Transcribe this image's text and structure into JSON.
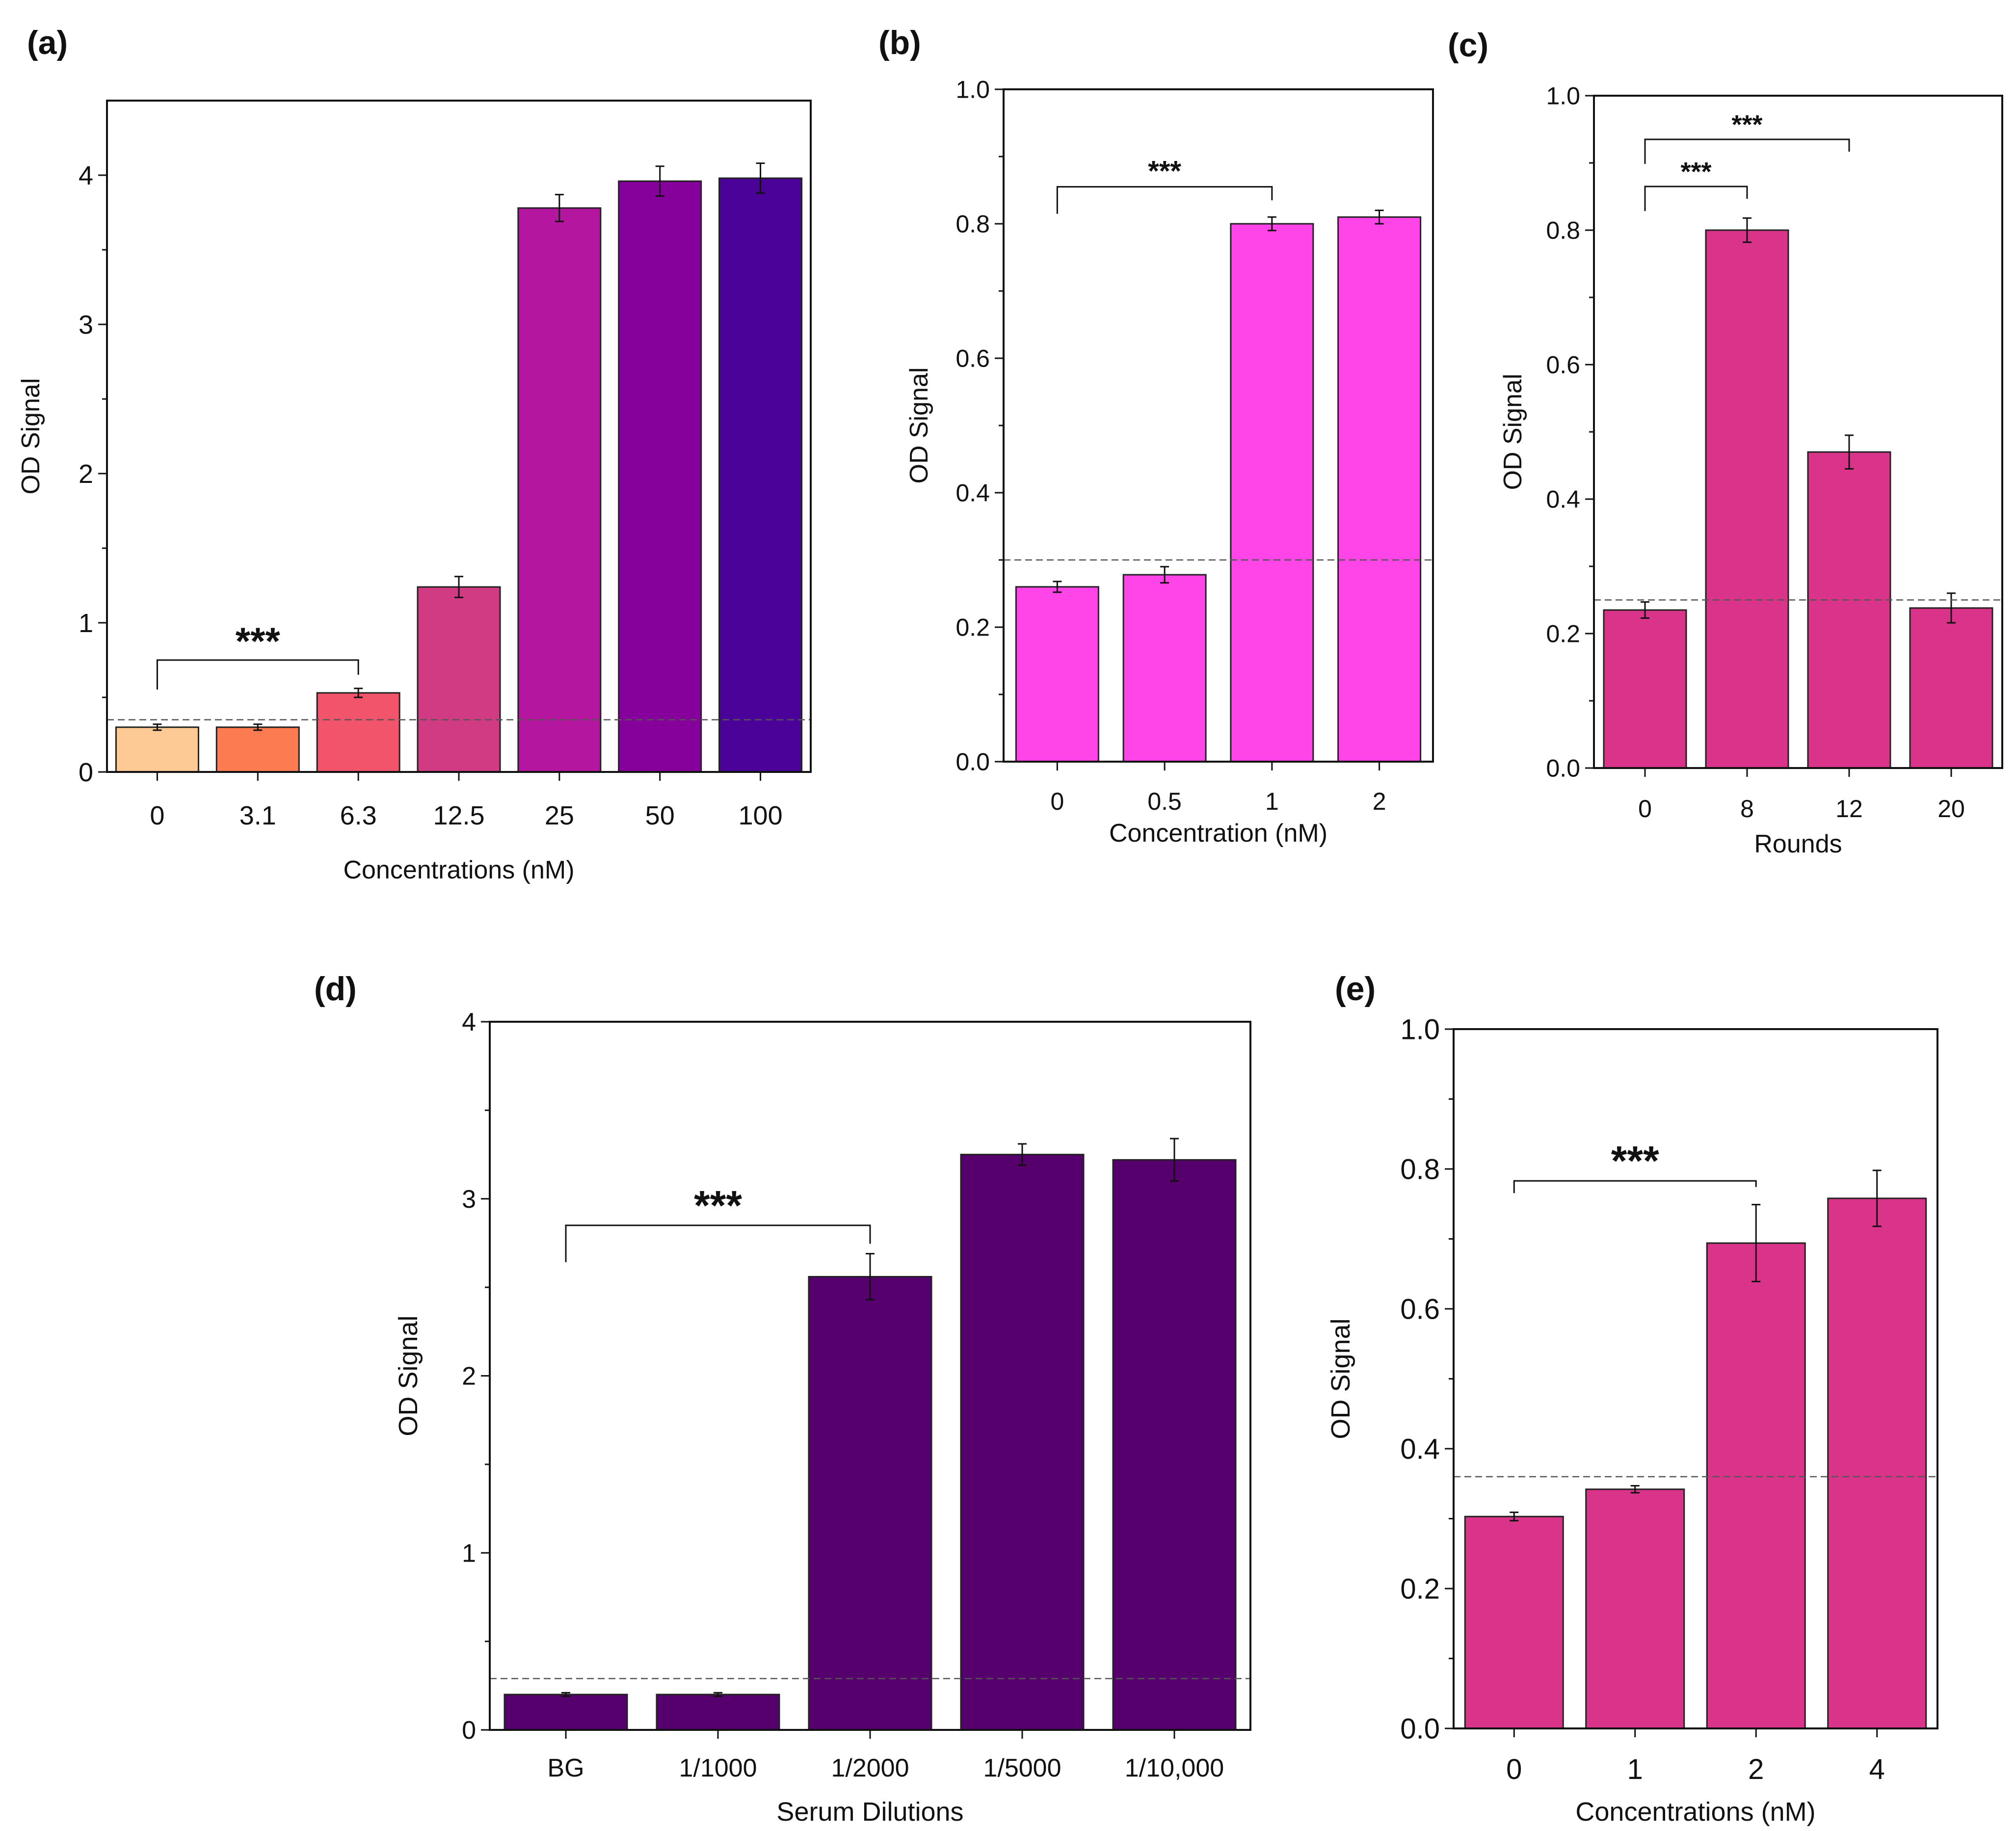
{
  "chart_data": [
    {
      "type": "bar",
      "panel_label": "(a)",
      "title": "",
      "xlabel": "Concentrations (nM)",
      "ylabel": "OD Signal",
      "ylim": [
        0,
        4.5
      ],
      "yticks": [
        "0",
        "1",
        "2",
        "3",
        "4"
      ],
      "categories": [
        "0",
        "3.1",
        "6.3",
        "12.5",
        "25",
        "50",
        "100"
      ],
      "values": [
        0.3,
        0.3,
        0.53,
        1.24,
        3.78,
        3.96,
        3.98
      ],
      "errors": [
        0.02,
        0.02,
        0.03,
        0.07,
        0.09,
        0.1,
        0.1
      ],
      "bar_colors": [
        "#FDC994",
        "#FC7B50",
        "#F1546B",
        "#D13B83",
        "#B4169F",
        "#86009C",
        "#4A0298"
      ],
      "tick_colors": [
        "#111111",
        "#111111",
        "#111111",
        "#111111",
        "#111111",
        "#111111",
        "#111111"
      ],
      "cutoff": 0.35,
      "significance": {
        "from": 0,
        "to": 2,
        "level": 0.75,
        "label": "***"
      }
    },
    {
      "type": "bar",
      "panel_label": "(b)",
      "title": "",
      "xlabel": "Concentration (nM)",
      "ylabel": "OD Signal",
      "ylim": [
        0,
        1.0
      ],
      "yticks": [
        "0.0",
        "0.2",
        "0.4",
        "0.6",
        "0.8",
        "1.0"
      ],
      "categories": [
        "0",
        "0.5",
        "1",
        "2"
      ],
      "values": [
        0.26,
        0.278,
        0.8,
        0.81
      ],
      "errors": [
        0.008,
        0.012,
        0.01,
        0.01
      ],
      "bar_colors": [
        "#FF44E8",
        "#FF44E8",
        "#FF44E8",
        "#FF44E8"
      ],
      "tick_colors": [
        "#111111",
        "#111111",
        "#111111",
        "#111111"
      ],
      "cutoff": 0.3,
      "significance": {
        "from": 0,
        "to": 2,
        "level": 0.855,
        "label": "***"
      }
    },
    {
      "type": "bar",
      "panel_label": "(c)",
      "title": "",
      "xlabel": "Rounds",
      "ylabel": "OD Signal",
      "ylim": [
        0,
        1.0
      ],
      "yticks": [
        "0.0",
        "0.2",
        "0.4",
        "0.6",
        "0.8",
        "1.0"
      ],
      "categories": [
        "0",
        "8",
        "12",
        "20"
      ],
      "values": [
        0.235,
        0.8,
        0.47,
        0.238
      ],
      "errors": [
        0.012,
        0.018,
        0.025,
        0.022
      ],
      "bar_colors": [
        "#D9348A",
        "#D9348A",
        "#D9348A",
        "#D9348A"
      ],
      "tick_colors": [
        "#111111",
        "#111111",
        "#111111",
        "#111111"
      ],
      "cutoff": 0.25,
      "significance": [
        {
          "from": 0,
          "to": 1,
          "level": 0.865,
          "label": "***"
        },
        {
          "from": 0,
          "to": 2,
          "level": 0.935,
          "label": "***"
        }
      ]
    },
    {
      "type": "bar",
      "panel_label": "(d)",
      "title": "",
      "xlabel": "Serum Dilutions",
      "ylabel": "OD Signal",
      "ylim": [
        0,
        4
      ],
      "yticks": [
        "0",
        "1",
        "2",
        "3",
        "4"
      ],
      "categories": [
        "BG",
        "1/1000",
        "1/2000",
        "1/5000",
        "1/10,000"
      ],
      "values": [
        0.2,
        0.2,
        2.56,
        3.25,
        3.22
      ],
      "errors": [
        0.01,
        0.01,
        0.13,
        0.06,
        0.12
      ],
      "bar_colors": [
        "#55006C",
        "#55006C",
        "#55006C",
        "#55006C",
        "#55006C"
      ],
      "tick_colors": [
        "#111111",
        "#111111",
        "#E8261C",
        "#E8261C",
        "#E8261C"
      ],
      "cutoff": 0.29,
      "significance": {
        "from": 0,
        "to": 2,
        "level": 2.85,
        "label": "***"
      }
    },
    {
      "type": "bar",
      "panel_label": "(e)",
      "title": "",
      "xlabel": "Concentrations (nM)",
      "ylabel": "OD Signal",
      "ylim": [
        0,
        1.0
      ],
      "yticks": [
        "0.0",
        "0.2",
        "0.4",
        "0.6",
        "0.8",
        "1.0"
      ],
      "categories": [
        "0",
        "1",
        "2",
        "4"
      ],
      "values": [
        0.303,
        0.342,
        0.694,
        0.758
      ],
      "errors": [
        0.006,
        0.005,
        0.055,
        0.04
      ],
      "bar_colors": [
        "#D9348A",
        "#D9348A",
        "#D9348A",
        "#D9348A"
      ],
      "tick_colors": [
        "#111111",
        "#111111",
        "#111111",
        "#111111"
      ],
      "cutoff": 0.36,
      "significance": {
        "from": 0,
        "to": 2,
        "level": 0.783,
        "label": "***"
      }
    }
  ]
}
